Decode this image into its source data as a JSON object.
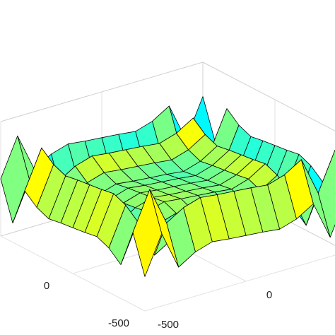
{
  "chart_data": {
    "type": "surface",
    "x": [
      -500,
      -416.7,
      -333.3,
      -250,
      -166.7,
      -83.3,
      0,
      83.3,
      166.7,
      250,
      333.3,
      416.7,
      500
    ],
    "y": [
      -500,
      -416.7,
      -333.3,
      -250,
      -166.7,
      -83.3,
      0,
      83.3,
      166.7,
      250,
      333.3,
      416.7,
      500
    ],
    "z": [
      [
        -360,
        237,
        -367,
        -205,
        -123,
        -156,
        -180,
        -204,
        -237,
        -155,
        7,
        -597,
        0
      ],
      [
        237,
        834,
        230,
        392,
        474,
        441,
        417,
        393,
        360,
        442,
        604,
        0,
        597
      ],
      [
        -367,
        230,
        -374,
        -212,
        -130,
        -163,
        -187,
        -211,
        -244,
        -162,
        0,
        -604,
        -7
      ],
      [
        -205,
        392,
        -212,
        -50,
        32,
        -1,
        -25,
        -49,
        -82,
        0,
        162,
        -442,
        155
      ],
      [
        -123,
        474,
        -130,
        32,
        114,
        81,
        57,
        33,
        0,
        82,
        244,
        -360,
        237
      ],
      [
        -156,
        441,
        -163,
        -1,
        81,
        48,
        24,
        0,
        -33,
        49,
        211,
        -393,
        204
      ],
      [
        -180,
        417,
        -187,
        -25,
        57,
        24,
        0,
        -24,
        -57,
        25,
        187,
        -417,
        180
      ],
      [
        -204,
        393,
        -211,
        -49,
        33,
        0,
        -24,
        -48,
        -81,
        1,
        163,
        -441,
        156
      ],
      [
        -237,
        360,
        -244,
        -82,
        0,
        -33,
        -57,
        -81,
        -114,
        -32,
        130,
        -474,
        123
      ],
      [
        -155,
        442,
        -162,
        0,
        82,
        49,
        25,
        1,
        -32,
        50,
        212,
        -392,
        205
      ],
      [
        7,
        604,
        0,
        162,
        244,
        211,
        187,
        163,
        130,
        212,
        374,
        -230,
        367
      ],
      [
        -597,
        0,
        -604,
        -442,
        -360,
        -393,
        -417,
        -441,
        -474,
        -392,
        -230,
        -834,
        -237
      ],
      [
        0,
        597,
        -7,
        155,
        237,
        204,
        180,
        156,
        123,
        205,
        367,
        -237,
        360
      ]
    ],
    "xlim": [
      -500,
      500
    ],
    "ylim": [
      -500,
      500
    ],
    "zlim": [
      -900,
      900
    ],
    "xticks": [
      -500,
      0
    ],
    "yticks": [
      -500,
      0
    ],
    "grid": true,
    "colormap": "jet",
    "edge_color": "#000000"
  }
}
